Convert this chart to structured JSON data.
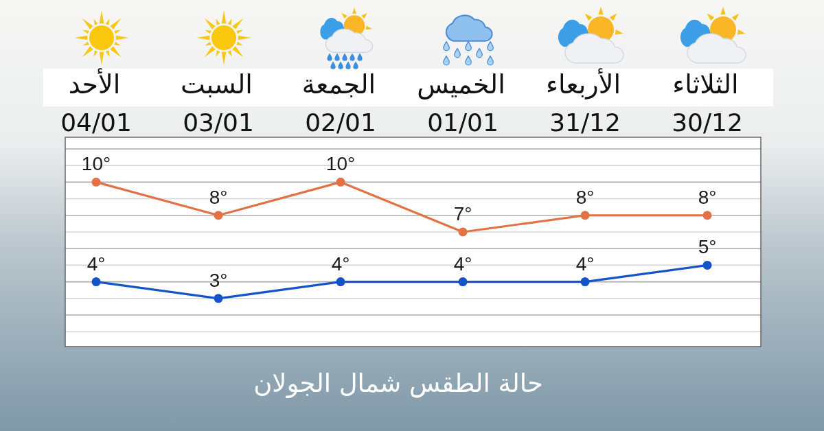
{
  "chart_data": {
    "type": "line",
    "title": "حالة الطقس شمال الجولان",
    "categories": [
      "الأحد\n04/01",
      "السبت\n03/01",
      "الجمعة\n02/01",
      "الخميس\n01/01",
      "الأربعاء\n31/12",
      "الثلاثاء\n30/12"
    ],
    "series": [
      {
        "color": "#e27245",
        "values": [
          10,
          8,
          10,
          7,
          8,
          8
        ],
        "value_labels": [
          "10°",
          "8°",
          "10°",
          "7°",
          "8°",
          "8°"
        ]
      },
      {
        "color": "#1553c8",
        "values": [
          4,
          3,
          4,
          4,
          4,
          5
        ],
        "value_labels": [
          "4°",
          "3°",
          "4°",
          "4°",
          "4°",
          "5°"
        ]
      }
    ],
    "ylim": [
      0.1,
      12.7
    ],
    "yticks": [
      {
        "value": 1,
        "label": null
      },
      {
        "value": 2,
        "label": null
      },
      {
        "value": 3,
        "label": null
      },
      {
        "value": 4,
        "label": null
      },
      {
        "value": 5,
        "label": null
      },
      {
        "value": 6,
        "label": null
      },
      {
        "value": 7,
        "label": null
      },
      {
        "value": 8,
        "label": null
      },
      {
        "value": 9,
        "label": null
      },
      {
        "value": 10,
        "label": null
      },
      {
        "value": 11,
        "label": null
      },
      {
        "value": 12,
        "label": null
      }
    ],
    "grid": "y",
    "tick_labels": "x",
    "marker": "circle",
    "line_style": "solid"
  }
}
